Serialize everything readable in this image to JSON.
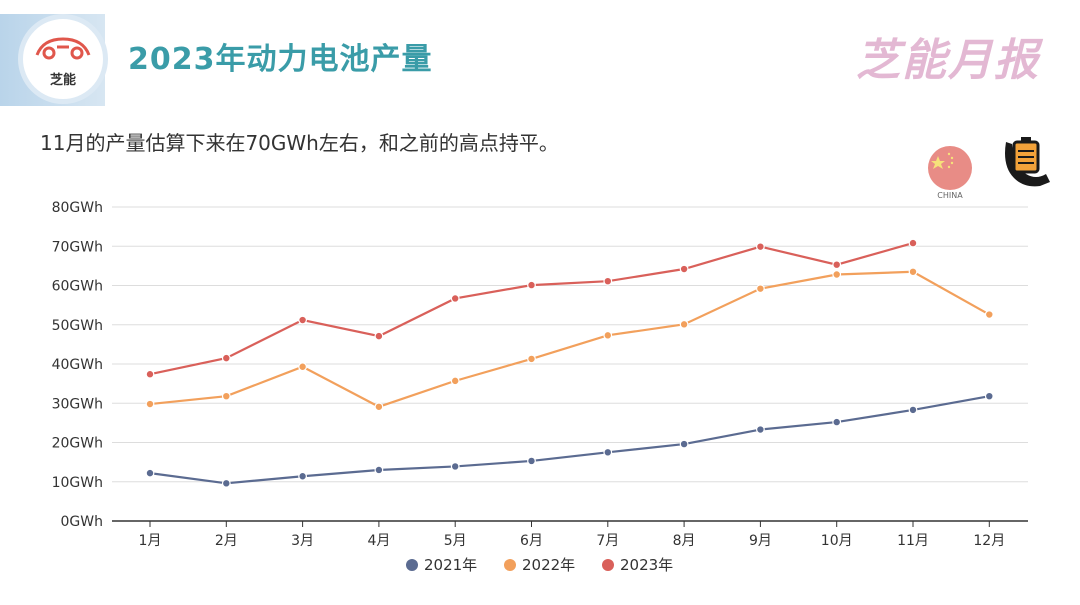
{
  "header": {
    "title": "2023年动力电池产量",
    "brand": "芝能月报",
    "logo_text": "芝能"
  },
  "subtitle": "11月的产量估算下来在70GWh左右，和之前的高点持平。",
  "china_badge_label": "CHINA",
  "chart_data": {
    "type": "line",
    "categories": [
      "1月",
      "2月",
      "3月",
      "4月",
      "5月",
      "6月",
      "7月",
      "8月",
      "9月",
      "10月",
      "11月",
      "12月"
    ],
    "y_ticks": [
      "0GWh",
      "10GWh",
      "20GWh",
      "30GWh",
      "40GWh",
      "50GWh",
      "60GWh",
      "70GWh",
      "80GWh"
    ],
    "ylim": [
      0,
      80
    ],
    "grid": true,
    "legend_position": "bottom",
    "series": [
      {
        "name": "2021年",
        "color": "#5b6b91",
        "values": [
          12.2,
          9.6,
          11.4,
          13.0,
          13.9,
          15.3,
          17.5,
          19.6,
          23.3,
          25.2,
          28.3,
          31.8
        ]
      },
      {
        "name": "2022年",
        "color": "#f2a05c",
        "values": [
          29.8,
          31.8,
          39.3,
          29.1,
          35.7,
          41.3,
          47.3,
          50.1,
          59.2,
          62.8,
          63.5,
          52.6
        ]
      },
      {
        "name": "2023年",
        "color": "#d9605a",
        "values": [
          37.4,
          41.5,
          51.2,
          47.1,
          56.7,
          60.1,
          61.1,
          64.2,
          69.9,
          65.3,
          70.8,
          null
        ]
      }
    ]
  }
}
